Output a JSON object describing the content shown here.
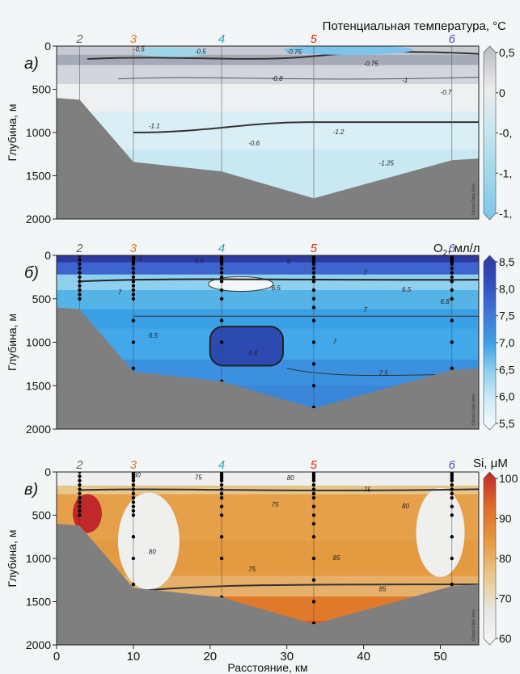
{
  "chart_data": [
    {
      "type": "heatmap",
      "panel_label": "а)",
      "colorbar_title": "Потенциальная температура, °C",
      "ylabel": "Глубина, м",
      "ylim": [
        0,
        2000
      ],
      "xlim": [
        0,
        55
      ],
      "y_ticks": [
        "0",
        "500",
        "1000",
        "1500",
        "2000"
      ],
      "colorbar_ticks": [
        "0,5",
        "0",
        "-0,",
        "-1,",
        "-1,"
      ],
      "colorbar_values": [
        0.5,
        0,
        -0.5,
        -1,
        -1.5
      ],
      "colorbar_colors": [
        "#b9b9c4",
        "#ececec",
        "#c4e6ee",
        "#9fd6ea",
        "#7cc4ea"
      ],
      "stations": [
        {
          "label": "2",
          "x": 3,
          "color": "#666666"
        },
        {
          "label": "3",
          "x": 10,
          "color": "#e07a20"
        },
        {
          "label": "4",
          "x": 21.5,
          "color": "#2aa3b0"
        },
        {
          "label": "5",
          "x": 33.5,
          "color": "#e03020"
        },
        {
          "label": "6",
          "x": 51.5,
          "color": "#5b4fb8"
        }
      ],
      "contour_labels": [
        "-0.5",
        "-0.5",
        "-0.75",
        "-0.75",
        "-0.8",
        "-1",
        "-1.1",
        "-1.2",
        "-1.25",
        "-0.6",
        "-0.7"
      ],
      "bottom_profile": [
        [
          0,
          600
        ],
        [
          3,
          620
        ],
        [
          10,
          1340
        ],
        [
          21.5,
          1450
        ],
        [
          33.5,
          1760
        ],
        [
          51.5,
          1320
        ],
        [
          55,
          1300
        ]
      ],
      "watermark": "Ocean Data View"
    },
    {
      "type": "heatmap",
      "panel_label": "б)",
      "colorbar_title": "O",
      "colorbar_title_sub": "2",
      "colorbar_title_rest": ", мл/л",
      "ylabel": "Глубина, м",
      "ylim": [
        0,
        2000
      ],
      "xlim": [
        0,
        55
      ],
      "y_ticks": [
        "0",
        "500",
        "1000",
        "1500",
        "2000"
      ],
      "colorbar_ticks": [
        "8,5",
        "8,0",
        "7,5",
        "7,0",
        "6,5",
        "6,0",
        "5,5"
      ],
      "colorbar_values": [
        8.5,
        8.0,
        7.5,
        7.0,
        6.5,
        6.0,
        5.5
      ],
      "colorbar_colors": [
        "#2c3a9e",
        "#3350c0",
        "#3f78d8",
        "#3aa0e6",
        "#8fd0ef",
        "#d2ecf6",
        "#f8fbfc"
      ],
      "stations": [
        {
          "label": "2",
          "x": 3,
          "color": "#666666"
        },
        {
          "label": "3",
          "x": 10,
          "color": "#e07a20"
        },
        {
          "label": "4",
          "x": 21.5,
          "color": "#2aa3b0"
        },
        {
          "label": "5",
          "x": 33.5,
          "color": "#e03020"
        },
        {
          "label": "6",
          "x": 51.5,
          "color": "#5b4fb8"
        }
      ],
      "sample_depths": [
        {
          "x": 3,
          "depths": [
            0,
            50,
            100,
            150,
            200,
            250,
            300,
            350,
            400,
            450,
            500
          ]
        },
        {
          "x": 10,
          "depths": [
            0,
            25,
            50,
            75,
            100,
            150,
            200,
            250,
            300,
            350,
            400,
            450,
            500,
            750,
            1000,
            1300
          ]
        },
        {
          "x": 21.5,
          "depths": [
            0,
            25,
            50,
            75,
            100,
            150,
            200,
            250,
            300,
            400,
            500,
            750,
            1000,
            1450
          ]
        },
        {
          "x": 33.5,
          "depths": [
            0,
            25,
            50,
            75,
            100,
            150,
            200,
            250,
            300,
            400,
            500,
            600,
            750,
            1000,
            1250,
            1500,
            1750
          ]
        },
        {
          "x": 51.5,
          "depths": [
            0,
            25,
            50,
            75,
            100,
            150,
            200,
            250,
            300,
            400,
            500,
            750,
            1000,
            1300
          ]
        }
      ],
      "contour_labels": [
        "7.5",
        "6.5",
        "6",
        "7",
        "6.5",
        "6.5",
        "6.5",
        "7",
        "7.5",
        "6.8",
        "6.8",
        "7",
        "7"
      ],
      "bottom_profile": [
        [
          0,
          600
        ],
        [
          3,
          620
        ],
        [
          10,
          1340
        ],
        [
          21.5,
          1450
        ],
        [
          33.5,
          1760
        ],
        [
          51.5,
          1320
        ],
        [
          55,
          1300
        ]
      ],
      "watermark": "Ocean Data View"
    },
    {
      "type": "heatmap",
      "panel_label": "в)",
      "colorbar_title": "Si, μM",
      "ylabel": "Глубина, м",
      "xlabel": "Расстояние, км",
      "ylim": [
        0,
        2000
      ],
      "xlim": [
        0,
        55
      ],
      "x_ticks": [
        "0",
        "10",
        "20",
        "30",
        "40",
        "50"
      ],
      "x_tick_values": [
        0,
        10,
        20,
        30,
        40,
        50
      ],
      "y_ticks": [
        "0",
        "500",
        "1000",
        "1500",
        "2000"
      ],
      "colorbar_ticks": [
        "100",
        "90",
        "80",
        "70",
        "60"
      ],
      "colorbar_values": [
        100,
        90,
        80,
        70,
        60
      ],
      "colorbar_colors": [
        "#c0282a",
        "#e06a2a",
        "#e69a40",
        "#e8c88a",
        "#e6e6e4",
        "#f6f6f6"
      ],
      "stations": [
        {
          "label": "2",
          "x": 3,
          "color": "#666666"
        },
        {
          "label": "3",
          "x": 10,
          "color": "#e07a20"
        },
        {
          "label": "4",
          "x": 21.5,
          "color": "#2aa3b0"
        },
        {
          "label": "5",
          "x": 33.5,
          "color": "#e03020"
        },
        {
          "label": "6",
          "x": 51.5,
          "color": "#5b4fb8"
        }
      ],
      "sample_depths": [
        {
          "x": 3,
          "depths": [
            0,
            50,
            100,
            150,
            200,
            250,
            300,
            350,
            400,
            450,
            500
          ]
        },
        {
          "x": 10,
          "depths": [
            0,
            25,
            50,
            75,
            100,
            150,
            200,
            250,
            300,
            350,
            400,
            450,
            500,
            750,
            1000,
            1300
          ]
        },
        {
          "x": 21.5,
          "depths": [
            0,
            25,
            50,
            75,
            100,
            150,
            200,
            250,
            300,
            400,
            500,
            750,
            1000,
            1450
          ]
        },
        {
          "x": 33.5,
          "depths": [
            0,
            25,
            50,
            75,
            100,
            150,
            200,
            250,
            300,
            400,
            500,
            600,
            750,
            1000,
            1250,
            1500,
            1750
          ]
        },
        {
          "x": 51.5,
          "depths": [
            0,
            25,
            50,
            75,
            100,
            150,
            200,
            250,
            300,
            400,
            500,
            750,
            1000,
            1300
          ]
        }
      ],
      "contour_labels": [
        "80",
        "75",
        "80",
        "75",
        "75",
        "80",
        "80",
        "85",
        "85",
        "75"
      ],
      "bottom_profile": [
        [
          0,
          600
        ],
        [
          3,
          620
        ],
        [
          10,
          1340
        ],
        [
          21.5,
          1450
        ],
        [
          33.5,
          1760
        ],
        [
          51.5,
          1320
        ],
        [
          55,
          1300
        ]
      ],
      "watermark": "Ocean Data View"
    }
  ]
}
